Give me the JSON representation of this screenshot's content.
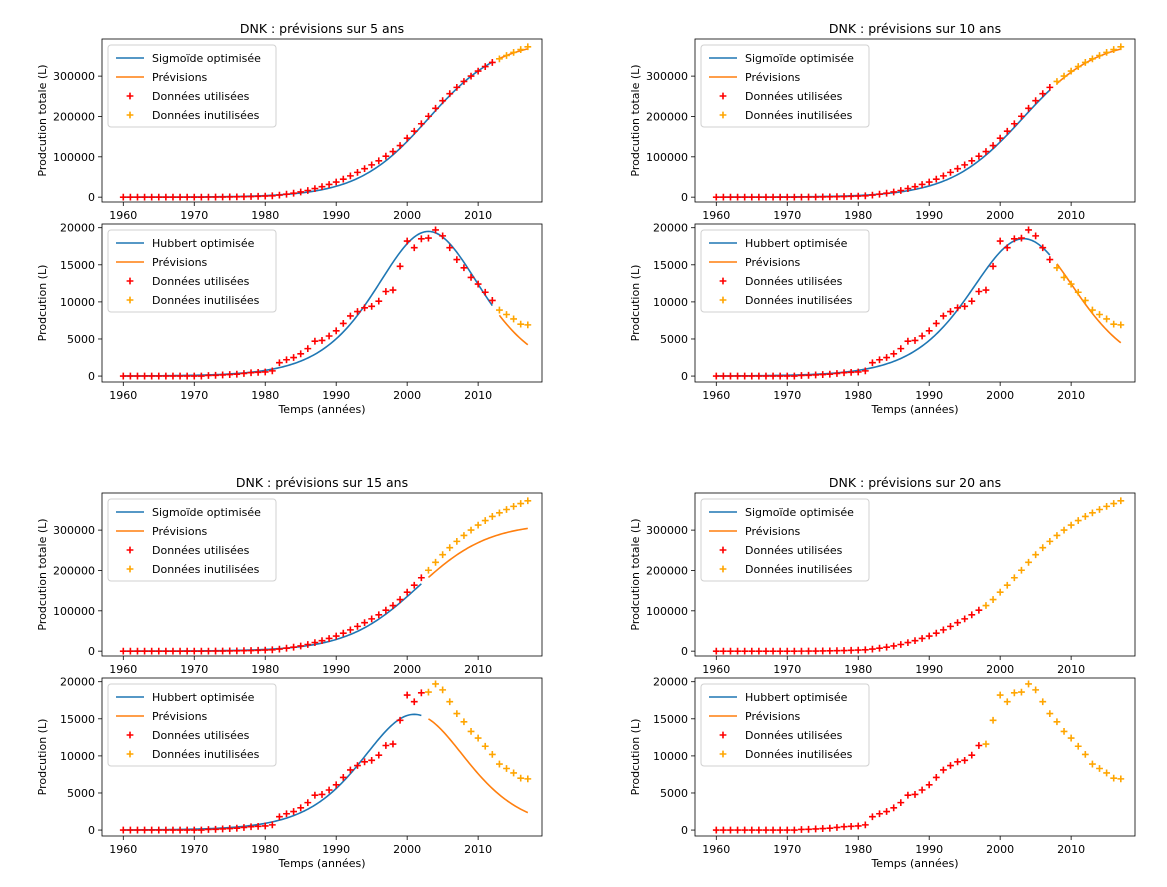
{
  "figure": {
    "xlabel": "Temps (années)",
    "xlim": [
      1957,
      2019
    ],
    "xticks": [
      1960,
      1970,
      1980,
      1990,
      2000,
      2010
    ],
    "colors": {
      "fit": "#1f77b4",
      "forecast": "#ff7f0e",
      "used": "#ff0000",
      "unused": "#ffa500"
    }
  },
  "chart_data": [
    {
      "type": "line",
      "title": "DNK : prévisions sur 5 ans",
      "split_year": 2012,
      "top": {
        "ylabel": "Prodcution totale (L)",
        "ylim": [
          -12000,
          392000
        ],
        "yticks": [
          0,
          100000,
          200000,
          300000
        ],
        "legend": [
          "Sigmoïde optimisée",
          "Prévisions",
          "Données utilisées",
          "Données inutilisées"
        ],
        "legend_position": "top-left",
        "fit": {
          "k": 0.2,
          "x0": 2003,
          "L": 390000
        }
      },
      "bottom": {
        "ylabel": "Prodcution (L)",
        "ylim": [
          -800,
          20500
        ],
        "yticks": [
          0,
          5000,
          10000,
          15000,
          20000
        ],
        "legend": [
          "Hubbert optimisée",
          "Prévisions",
          "Données utilisées",
          "Données inutilisées"
        ],
        "legend_position": "top-left",
        "fit": {
          "k": 0.2,
          "x0": 2003,
          "L": 390000
        }
      }
    },
    {
      "type": "line",
      "title": "DNK : prévisions sur 10 ans",
      "split_year": 2007,
      "top": {
        "ylabel": "Prodcution totale (L)",
        "ylim": [
          -12000,
          392000
        ],
        "yticks": [
          0,
          100000,
          200000,
          300000
        ],
        "legend": [
          "Sigmoïde optimisée",
          "Prévisions",
          "Données utilisées",
          "Données inutilisées"
        ],
        "legend_position": "top-left",
        "fit": {
          "k": 0.195,
          "x0": 2003.2,
          "L": 392000
        }
      },
      "bottom": {
        "ylabel": "Prodcution (L)",
        "ylim": [
          -800,
          20500
        ],
        "yticks": [
          0,
          5000,
          10000,
          15000,
          20000
        ],
        "legend": [
          "Hubbert optimisée",
          "Prévisions",
          "Données utilisées",
          "Données inutilisées"
        ],
        "legend_position": "top-left",
        "fit": {
          "k": 0.195,
          "x0": 2003.3,
          "L": 380000
        }
      }
    },
    {
      "type": "line",
      "title": "DNK : prévisions sur 15 ans",
      "split_year": 2002,
      "top": {
        "ylabel": "Prodcution totale (L)",
        "ylim": [
          -12000,
          392000
        ],
        "yticks": [
          0,
          100000,
          200000,
          300000
        ],
        "legend": [
          "Sigmoïde optimisée",
          "Prévisions",
          "Données utilisées",
          "Données inutilisées"
        ],
        "legend_position": "top-left",
        "fit": {
          "k": 0.2,
          "x0": 2001.5,
          "L": 318000
        }
      },
      "bottom": {
        "ylabel": "Prodcution (L)",
        "ylim": [
          -800,
          20500
        ],
        "yticks": [
          0,
          5000,
          10000,
          15000,
          20000
        ],
        "legend": [
          "Hubbert optimisée",
          "Prévisions",
          "Données utilisées",
          "Données inutilisées"
        ],
        "legend_position": "top-left",
        "fit": {
          "k": 0.2,
          "x0": 2001,
          "L": 312000
        }
      }
    },
    {
      "type": "line",
      "title": "DNK : prévisions sur 20 ans",
      "split_year": 1997,
      "top": {
        "ylabel": "Prodcution totale (L)",
        "ylim": [
          -12000,
          392000
        ],
        "yticks": [
          0,
          100000,
          200000,
          300000
        ],
        "legend": [
          "Sigmoïde optimisée",
          "Prévisions",
          "Données utilisées",
          "Données inutilisées"
        ],
        "legend_position": "top-left",
        "fit": null
      },
      "bottom": {
        "ylabel": "Prodcution (L)",
        "ylim": [
          -800,
          20500
        ],
        "yticks": [
          0,
          5000,
          10000,
          15000,
          20000
        ],
        "legend": [
          "Hubbert optimisée",
          "Prévisions",
          "Données utilisées",
          "Données inutilisées"
        ],
        "legend_position": "top-left",
        "fit": null
      }
    }
  ],
  "observations": {
    "years": [
      1960,
      1961,
      1962,
      1963,
      1964,
      1965,
      1966,
      1967,
      1968,
      1969,
      1970,
      1971,
      1972,
      1973,
      1974,
      1975,
      1976,
      1977,
      1978,
      1979,
      1980,
      1981,
      1982,
      1983,
      1984,
      1985,
      1986,
      1987,
      1988,
      1989,
      1990,
      1991,
      1992,
      1993,
      1994,
      1995,
      1996,
      1997,
      1998,
      1999,
      2000,
      2001,
      2002,
      2003,
      2004,
      2005,
      2006,
      2007,
      2008,
      2009,
      2010,
      2011,
      2012,
      2013,
      2014,
      2015,
      2016,
      2017
    ],
    "annual_production": [
      0,
      0,
      0,
      0,
      0,
      0,
      0,
      0,
      0,
      0,
      0,
      0,
      80,
      100,
      150,
      200,
      250,
      350,
      450,
      500,
      550,
      700,
      1800,
      2200,
      2500,
      3000,
      3700,
      4700,
      4800,
      5400,
      6100,
      7100,
      8100,
      8700,
      9200,
      9400,
      10100,
      11400,
      11600,
      14800,
      18200,
      17300,
      18500,
      18600,
      19700,
      18900,
      17300,
      15700,
      14600,
      13300,
      12400,
      11300,
      10200,
      8900,
      8300,
      7700,
      7000,
      6900
    ]
  }
}
